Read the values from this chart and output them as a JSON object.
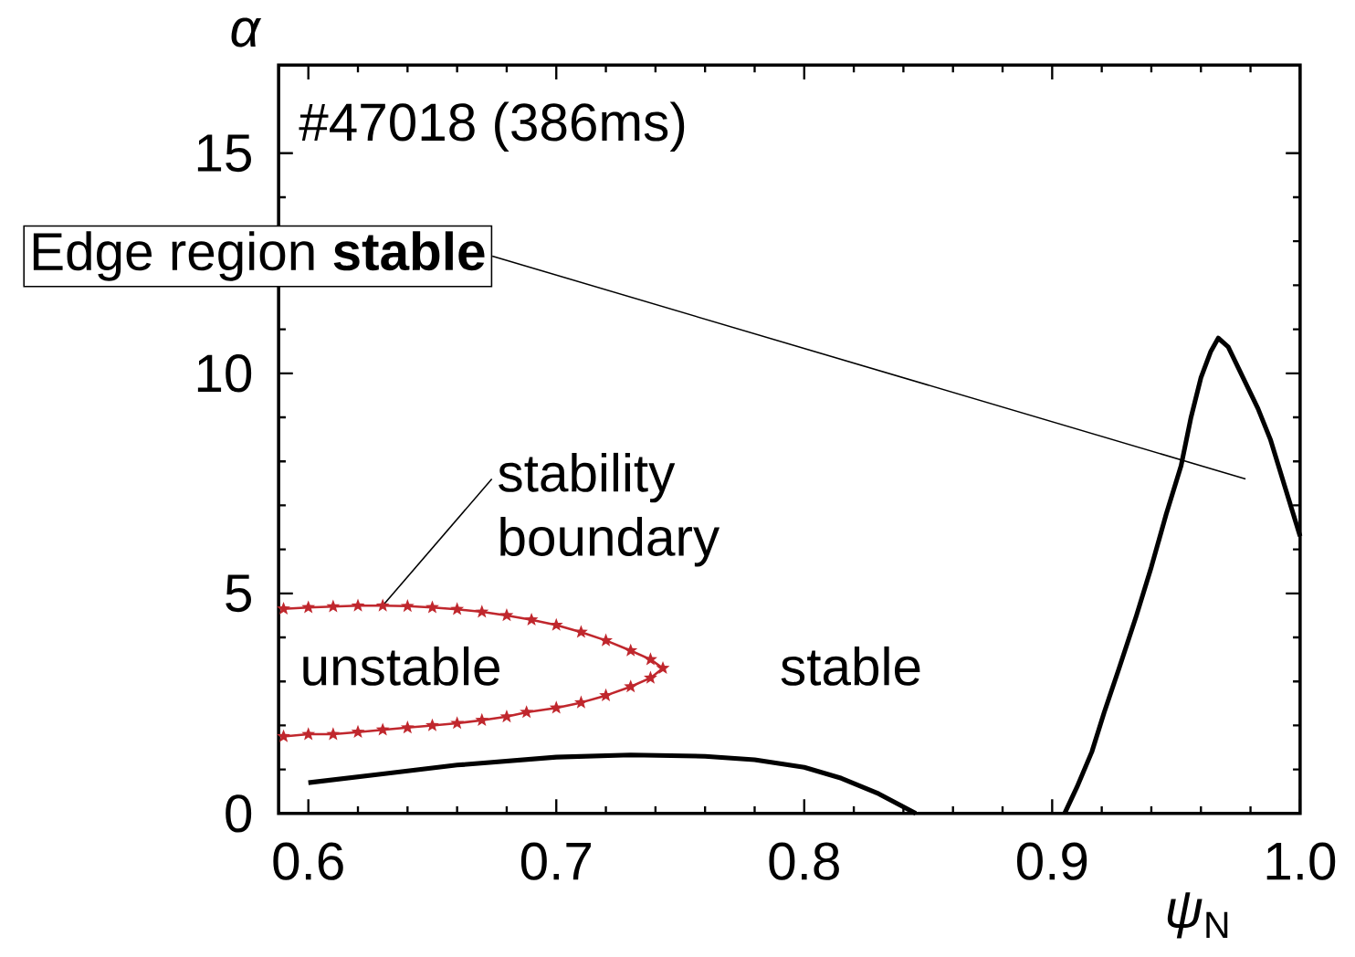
{
  "chart_data": {
    "type": "line",
    "xlabel": "*ψ*$_{N}$",
    "ylabel": "α",
    "xlim": [
      0.588,
      1.0
    ],
    "ylim": [
      0,
      17
    ],
    "xticks": [
      0.6,
      0.7,
      0.8,
      0.9,
      {
        "value": 1.0,
        "label": "1.0"
      }
    ],
    "yticks": [
      0,
      5,
      10,
      15
    ],
    "series": [
      {
        "color": "#000000",
        "line_style": "solid",
        "marker": "none",
        "x": [
          0.6,
          0.63,
          0.66,
          0.7,
          0.73,
          0.76,
          0.78,
          0.8,
          0.815,
          0.83,
          0.845,
          0.875,
          0.905,
          0.91,
          0.916,
          0.921,
          0.927,
          0.934,
          0.94,
          0.946,
          0.952,
          0.956,
          0.96,
          0.964,
          0.967,
          0.971,
          0.977,
          0.983,
          0.988,
          0.994,
          1.0
        ],
        "values": [
          0.7,
          0.9,
          1.1,
          1.28,
          1.33,
          1.3,
          1.22,
          1.05,
          0.8,
          0.45,
          0,
          null,
          0,
          0.6,
          1.4,
          2.3,
          3.3,
          4.5,
          5.6,
          6.8,
          7.9,
          9.0,
          9.9,
          10.5,
          10.8,
          10.6,
          9.9,
          9.2,
          8.5,
          7.4,
          6.3
        ]
      },
      {
        "color": "#c0272d",
        "line_style": "solid",
        "marker": "star",
        "x": [
          0.59,
          0.6,
          0.61,
          0.62,
          0.63,
          0.64,
          0.65,
          0.66,
          0.67,
          0.68,
          0.69,
          0.7,
          0.71,
          0.72,
          0.73,
          0.738,
          0.743,
          0.738,
          0.73,
          0.72,
          0.71,
          0.7,
          0.688,
          0.68,
          0.67,
          0.66,
          0.65,
          0.64,
          0.63,
          0.62,
          0.61,
          0.6,
          0.59
        ],
        "values": [
          4.65,
          4.68,
          4.7,
          4.72,
          4.72,
          4.71,
          4.68,
          4.64,
          4.58,
          4.5,
          4.4,
          4.28,
          4.12,
          3.93,
          3.7,
          3.5,
          3.3,
          3.08,
          2.88,
          2.68,
          2.52,
          2.4,
          2.3,
          2.2,
          2.12,
          2.05,
          2.0,
          1.95,
          1.9,
          1.85,
          1.8,
          1.8,
          1.75
        ]
      }
    ],
    "annotations": [
      "#47018 (386ms)",
      "Edge region **stable**",
      {
        "text": "stability boundary",
        "x": 0.63,
        "y": 4.72
      },
      "unstable",
      "stable"
    ]
  }
}
